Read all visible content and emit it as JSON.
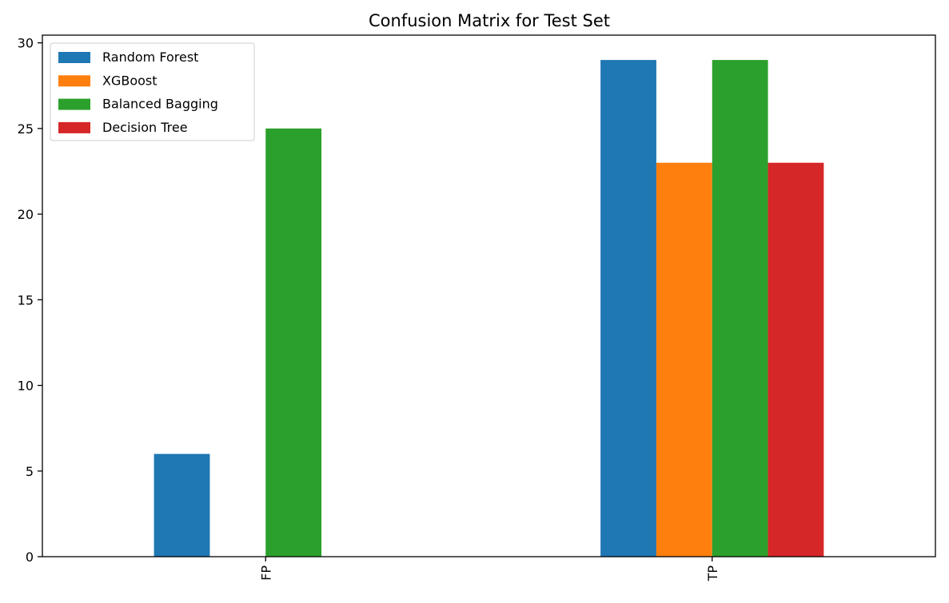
{
  "chart_data": {
    "type": "bar",
    "title": "Confusion Matrix for Test Set",
    "xlabel": "",
    "ylabel": "",
    "categories": [
      "FP",
      "TP"
    ],
    "series": [
      {
        "name": "Random Forest",
        "values": [
          6,
          29
        ],
        "color": "#1f77b4"
      },
      {
        "name": "XGBoost",
        "values": [
          0,
          23
        ],
        "color": "#ff7f0e"
      },
      {
        "name": "Balanced Bagging",
        "values": [
          25,
          29
        ],
        "color": "#2ca02c"
      },
      {
        "name": "Decision Tree",
        "values": [
          0,
          23
        ],
        "color": "#d62728"
      }
    ],
    "ylim": [
      0,
      30.45
    ],
    "yticks": [
      "0",
      "5",
      "10",
      "15",
      "20",
      "25",
      "30"
    ],
    "grid": false,
    "legend_position": "upper-left",
    "x_tick_rotation": "vertical"
  }
}
